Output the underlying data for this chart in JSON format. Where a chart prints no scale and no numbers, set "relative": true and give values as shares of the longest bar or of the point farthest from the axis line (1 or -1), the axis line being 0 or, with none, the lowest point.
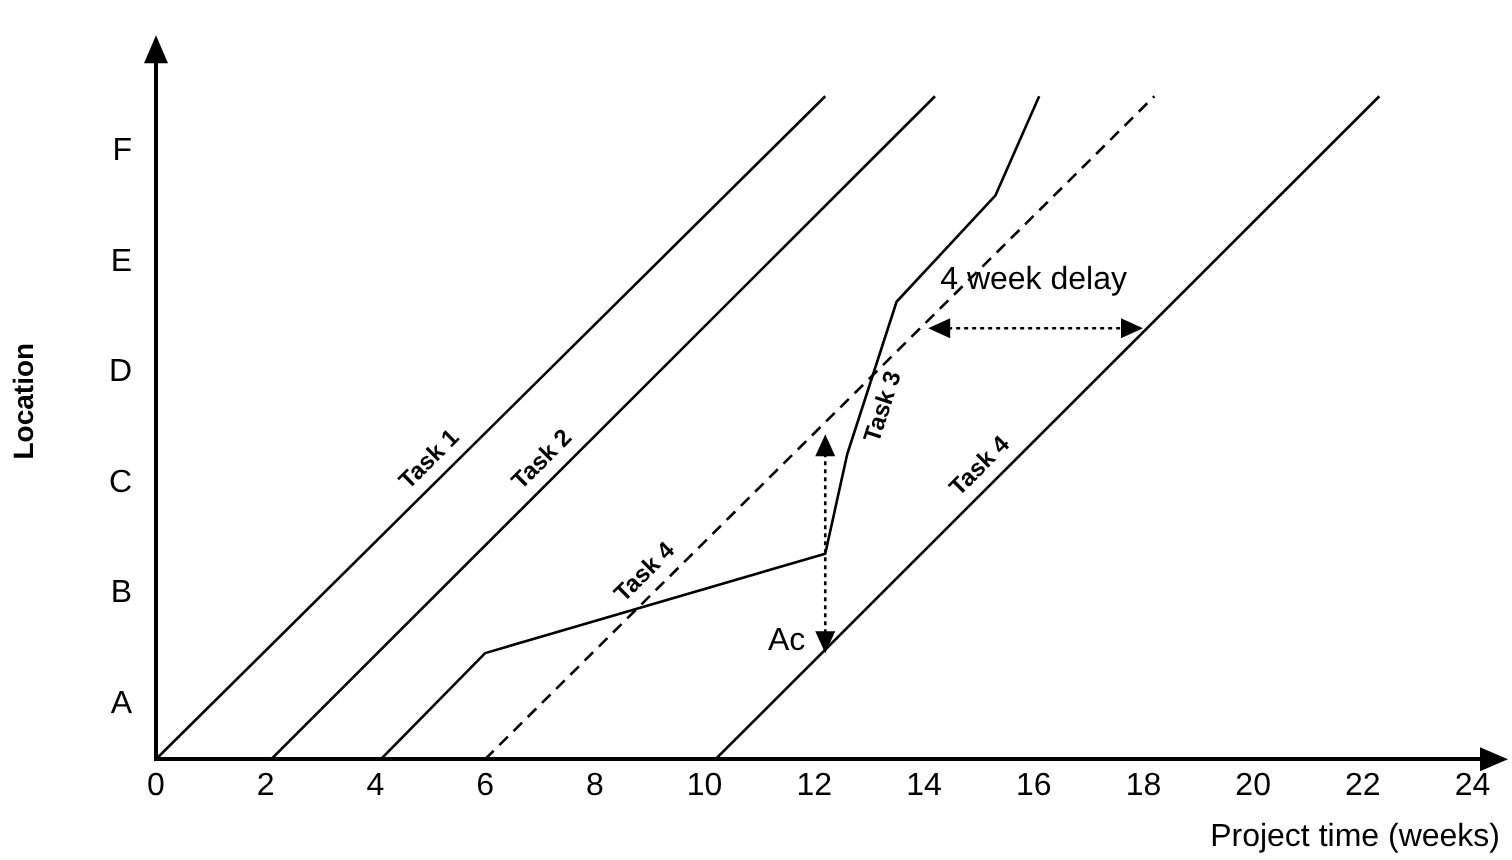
{
  "chart_data": {
    "type": "line",
    "relative": true,
    "xlabel": "Project time (weeks)",
    "ylabel": "Location",
    "xlim": [
      0,
      24.5
    ],
    "xticks": [
      0,
      2,
      4,
      6,
      8,
      10,
      12,
      14,
      16,
      18,
      20,
      22,
      24
    ],
    "y_categories": [
      "F",
      "E",
      "D",
      "C",
      "B",
      "A"
    ],
    "grid": false,
    "legend": false,
    "marker": "none",
    "series": [
      {
        "name": "Task 1",
        "color": "#000000",
        "line_style": "solid",
        "x": [
          0,
          12.2
        ],
        "values": [
          0,
          1
        ]
      },
      {
        "name": "Task 2",
        "color": "#000000",
        "line_style": "solid",
        "x": [
          2.1,
          14.2
        ],
        "values": [
          0,
          1
        ]
      },
      {
        "name": "Task 3",
        "color": "#000000",
        "line_style": "solid",
        "x": [
          4.1,
          6.0,
          12.2,
          12.6,
          13.5,
          15.3,
          16.1
        ],
        "values": [
          0,
          0.16,
          0.31,
          0.46,
          0.69,
          0.85,
          1
        ]
      },
      {
        "name": "Task 4",
        "color": "#000000",
        "line_style": "dashed",
        "x": [
          6.0,
          18.2
        ],
        "values": [
          0,
          1
        ]
      },
      {
        "name": "Task 4",
        "color": "#000000",
        "line_style": "solid",
        "x": [
          10.2,
          22.3
        ],
        "values": [
          0,
          1
        ]
      }
    ],
    "annotations": [
      "4 week delay",
      {
        "text": "Ac",
        "x": 12.2,
        "y": 0.16
      }
    ]
  }
}
